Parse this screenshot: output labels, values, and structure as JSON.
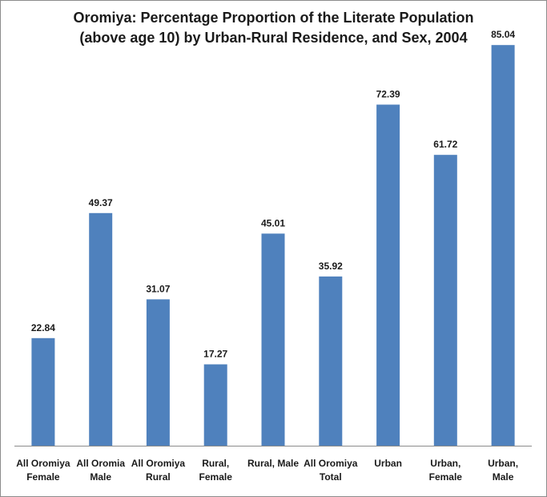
{
  "chart_data": {
    "type": "bar",
    "title_lines": [
      "Oromiya: Percentage Proportion of the Literate Population",
      "(above age 10) by Urban-Rural Residence, and Sex, 2004"
    ],
    "categories": [
      [
        "All Oromiya",
        "Female"
      ],
      [
        "All Oromia",
        "Male"
      ],
      [
        "All Oromiya",
        "Rural"
      ],
      [
        "Rural,",
        "Female"
      ],
      [
        "Rural, Male"
      ],
      [
        "All Oromiya",
        "Total"
      ],
      [
        "Urban"
      ],
      [
        "Urban,",
        "Female"
      ],
      [
        "Urban,",
        "Male"
      ]
    ],
    "values": [
      22.84,
      49.37,
      31.07,
      17.27,
      45.01,
      35.92,
      72.39,
      61.72,
      85.04
    ],
    "value_labels": [
      "22.84",
      "49.37",
      "31.07",
      "17.27",
      "45.01",
      "35.92",
      "72.39",
      "61.72",
      "85.04"
    ],
    "ylim": [
      0,
      90
    ],
    "grid": false,
    "legend": "none",
    "bar_color": "#4f81bd"
  }
}
